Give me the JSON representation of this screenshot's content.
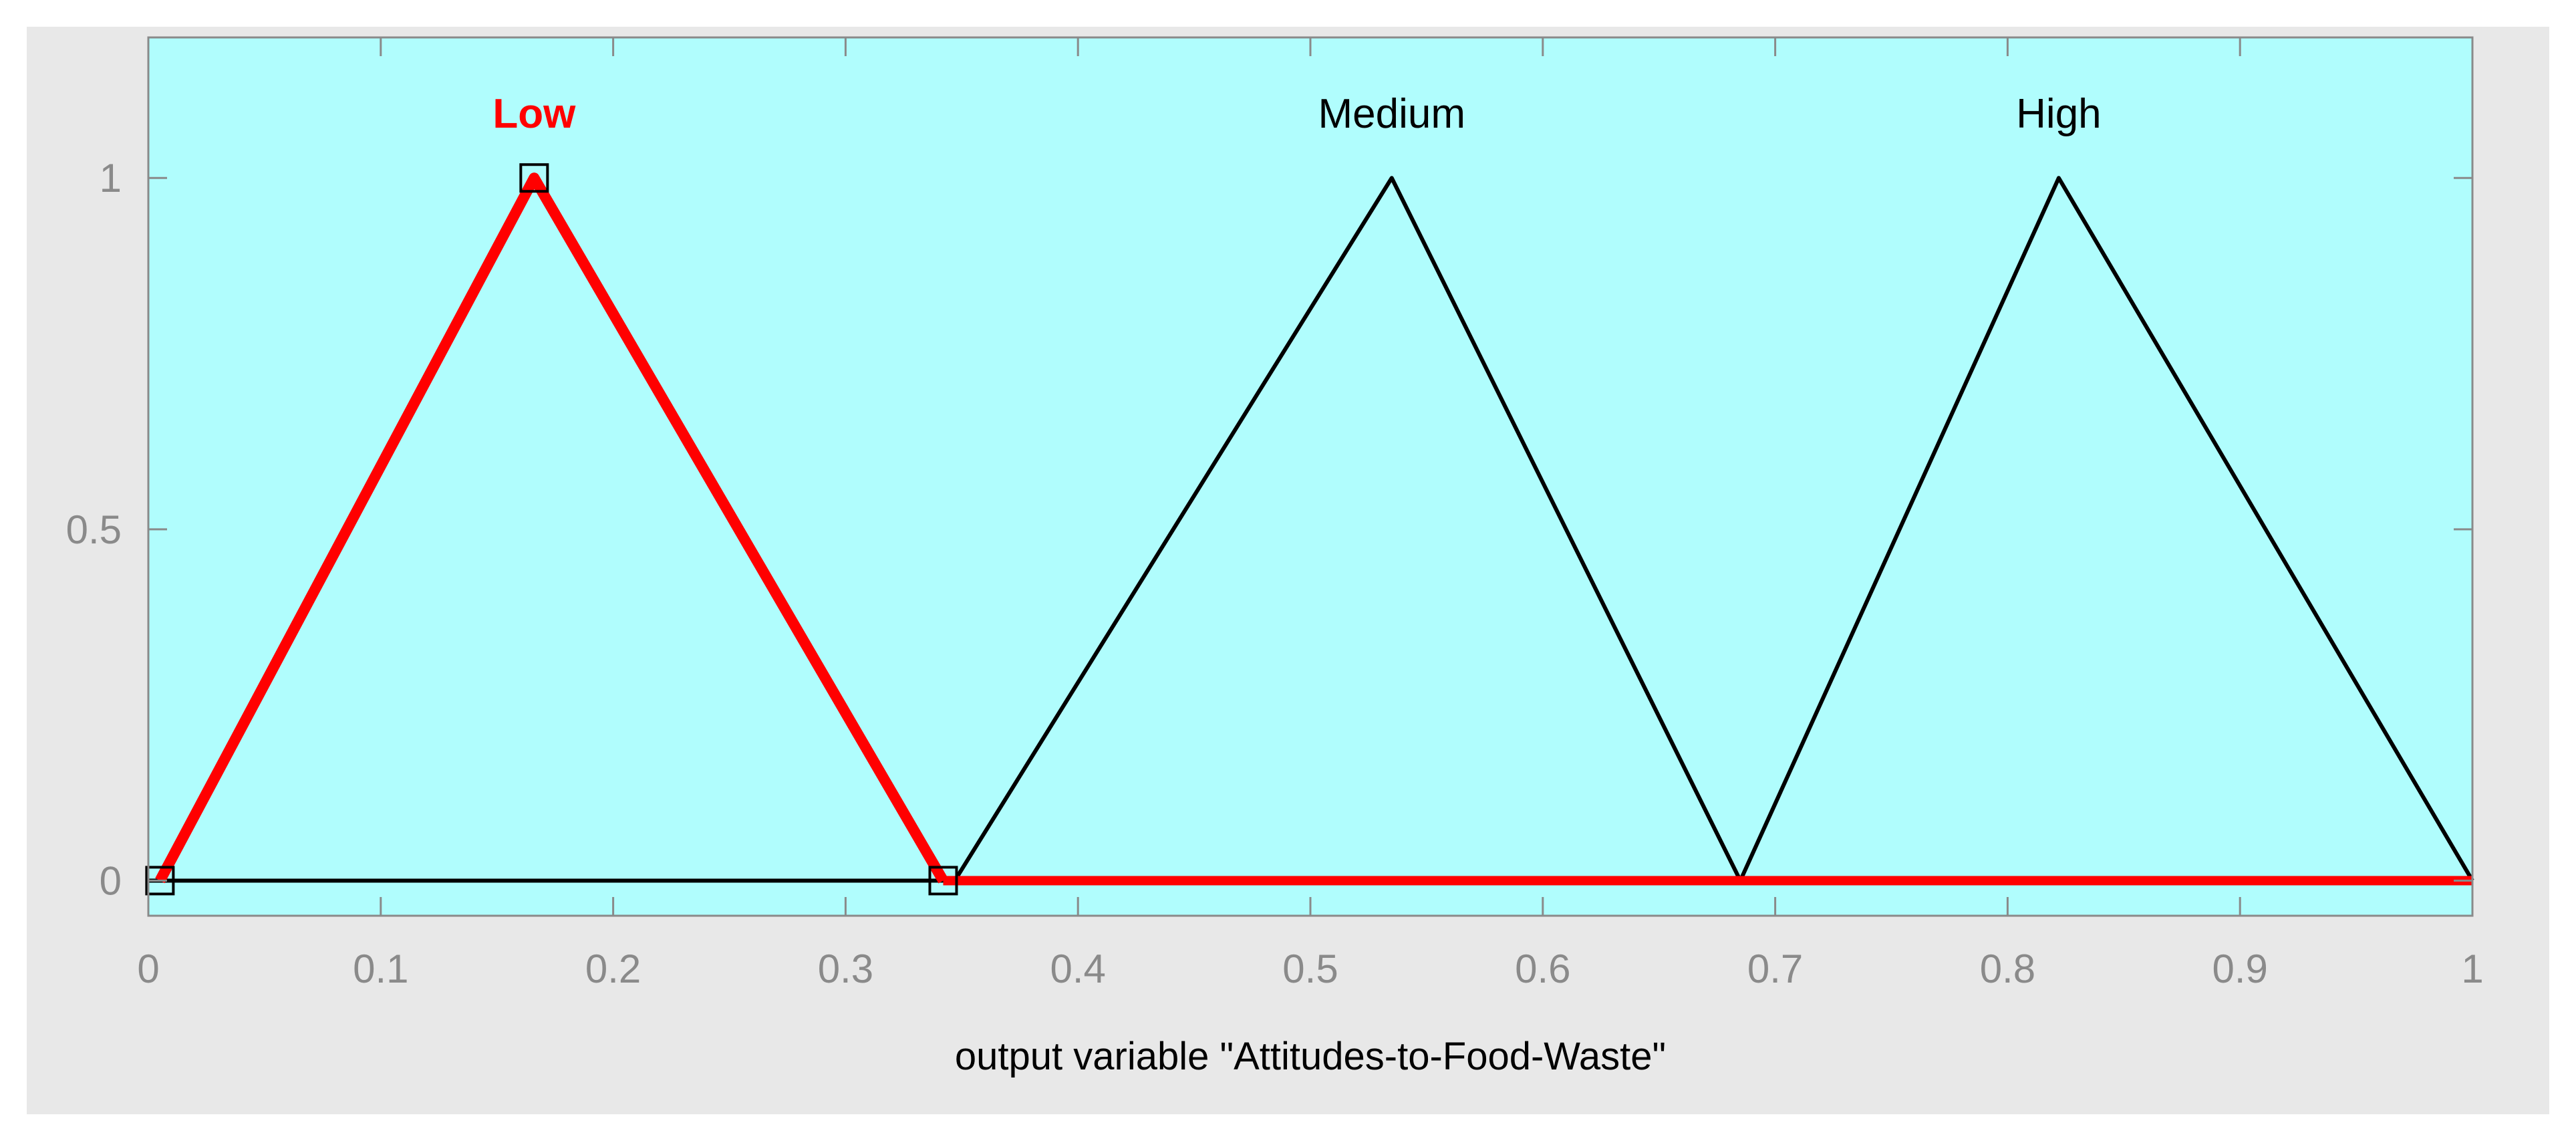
{
  "chart_data": {
    "type": "line",
    "title": "",
    "xlabel": "output variable \"Attitudes-to-Food-Waste\"",
    "ylabel": "",
    "xlim": [
      0,
      1
    ],
    "ylim": [
      -0.05,
      1.2
    ],
    "x_ticks": [
      0,
      0.1,
      0.2,
      0.3,
      0.4,
      0.5,
      0.6,
      0.7,
      0.8,
      0.9,
      1
    ],
    "x_tick_labels": [
      "0",
      "0.1",
      "0.2",
      "0.3",
      "0.4",
      "0.5",
      "0.6",
      "0.7",
      "0.8",
      "0.9",
      "1"
    ],
    "y_ticks": [
      0,
      0.5,
      1
    ],
    "y_tick_labels": [
      "0",
      "0.5",
      "1"
    ],
    "grid": false,
    "colors": {
      "plot_bg": "#b0fdfd",
      "figure_bg": "#e8e8e8",
      "selected": "#ff0000",
      "normal": "#000000",
      "axis": "#8a8a8a"
    },
    "series": [
      {
        "name": "Low",
        "selected": true,
        "x": [
          0.005,
          0.166,
          0.342
        ],
        "y": [
          0,
          1,
          0
        ]
      },
      {
        "name": "Medium",
        "selected": false,
        "x": [
          0.347,
          0.535,
          0.685
        ],
        "y": [
          0,
          1,
          0
        ]
      },
      {
        "name": "High",
        "selected": false,
        "x": [
          0.685,
          0.822,
          1.0
        ],
        "y": [
          0,
          1,
          0
        ]
      }
    ]
  }
}
